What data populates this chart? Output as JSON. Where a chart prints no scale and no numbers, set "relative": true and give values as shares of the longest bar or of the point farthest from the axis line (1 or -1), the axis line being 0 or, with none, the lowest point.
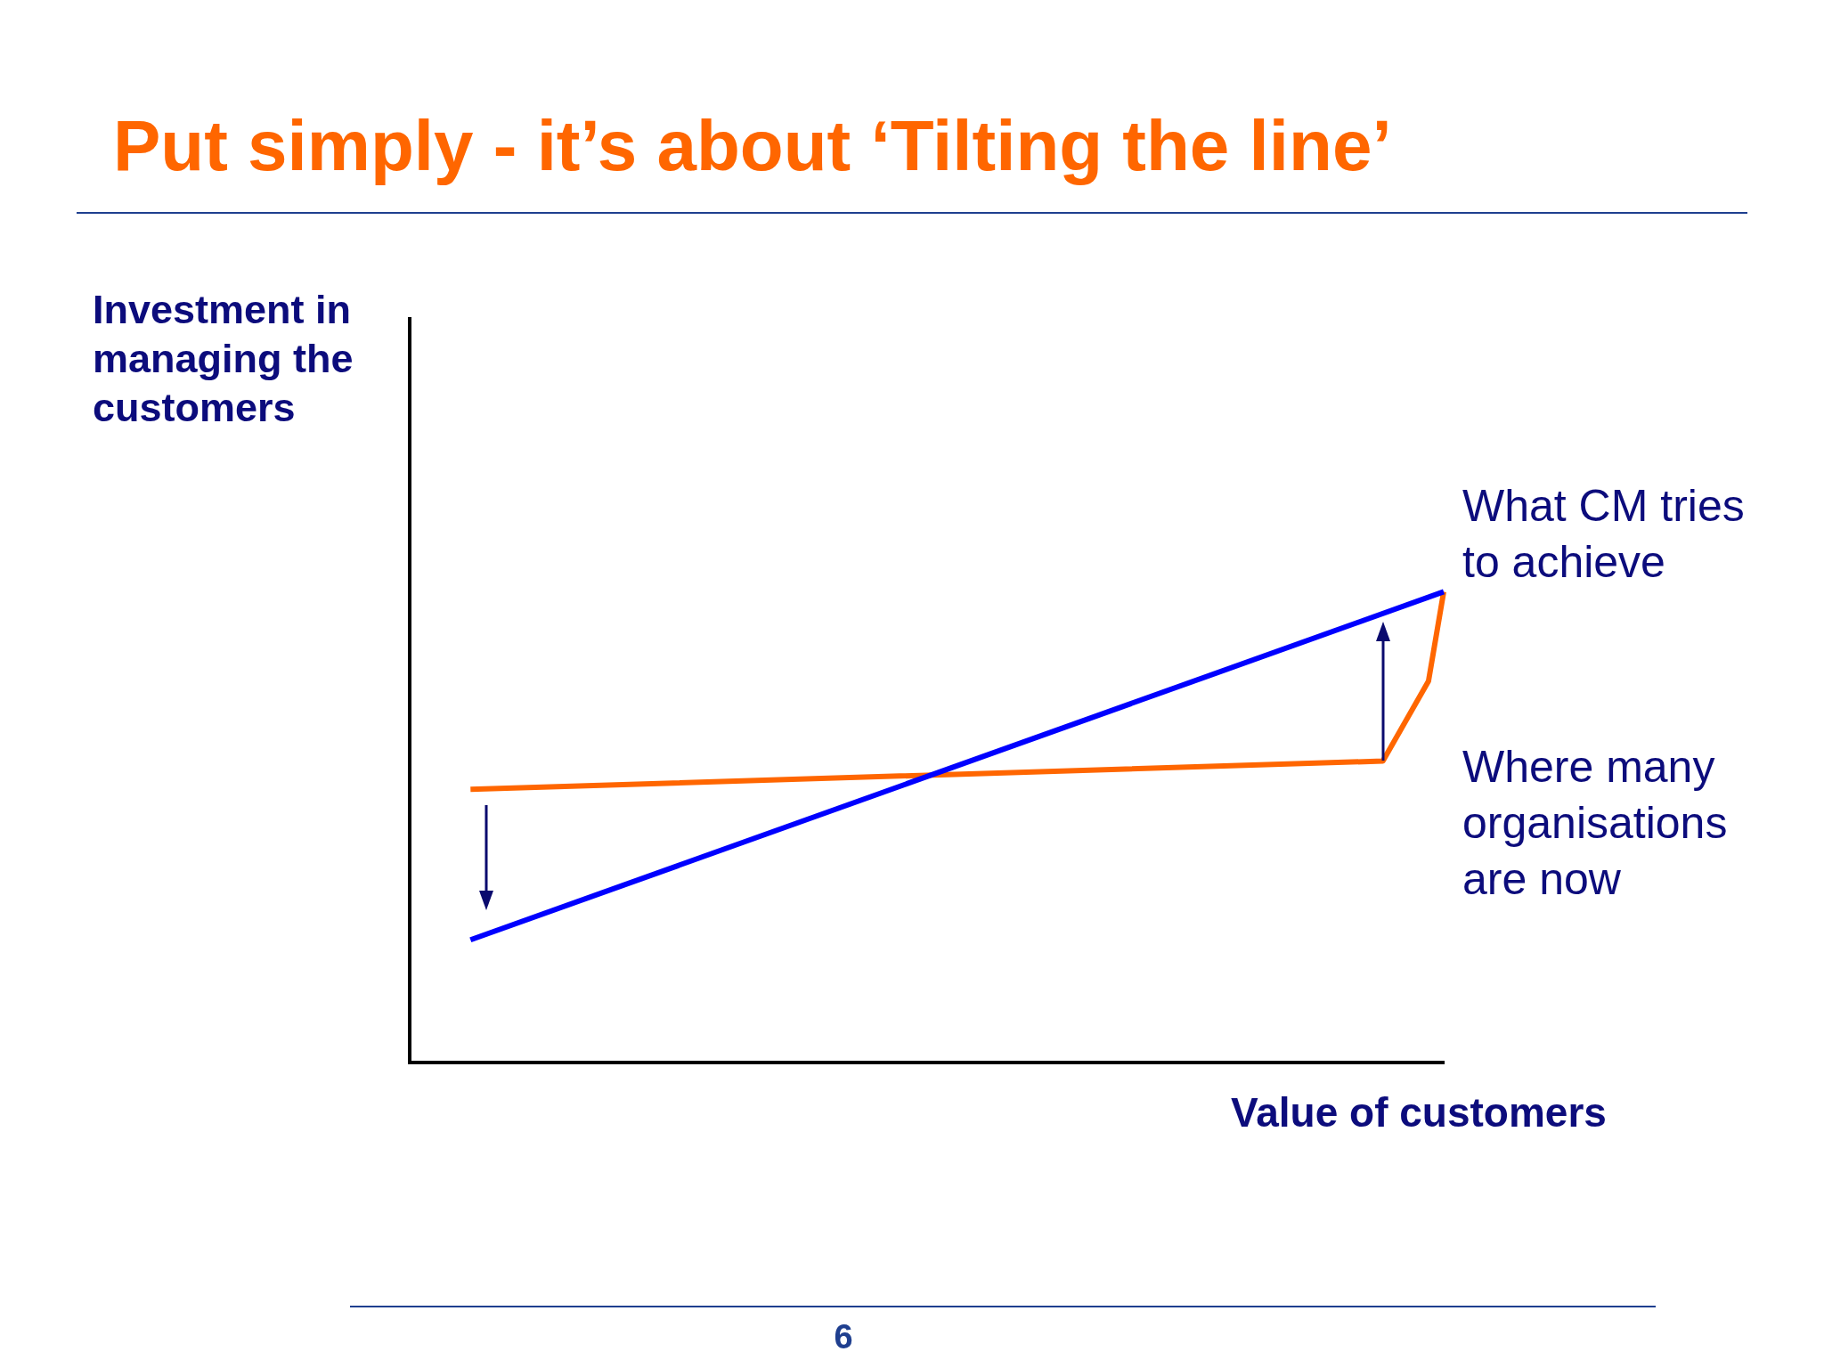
{
  "chart_data": {
    "type": "line",
    "title": "Put simply - it’s about ‘Tilting the line’",
    "xlabel": "Value of customers",
    "ylabel": "Investment in managing the customers",
    "relative": true,
    "categories": [
      null,
      null,
      null,
      null,
      null,
      null,
      null,
      null,
      null,
      null,
      null,
      null,
      null,
      null,
      null,
      null,
      null,
      null,
      null,
      null,
      null,
      null,
      null,
      null,
      null,
      null,
      null,
      null,
      null,
      null,
      null,
      null,
      null,
      null,
      null,
      null,
      null,
      null,
      null,
      null,
      null,
      null,
      null,
      null,
      null,
      null,
      null,
      null,
      null,
      null,
      null,
      null,
      null,
      null,
      null,
      null,
      null,
      null,
      null,
      null,
      null,
      null,
      null,
      null,
      null,
      null,
      null,
      null,
      null
    ],
    "series": [
      {
        "name": "What CM tries to achieve",
        "color": "#0000ff",
        "values": [
          null,
          null,
          null,
          null,
          0.26,
          null,
          null,
          null,
          null,
          null,
          null,
          null,
          null,
          null,
          null,
          null,
          null,
          null,
          null,
          null,
          null,
          null,
          null,
          null,
          null,
          null,
          null,
          null,
          null,
          null,
          null,
          null,
          null,
          null,
          null,
          null,
          null,
          null,
          null,
          null,
          null,
          null,
          null,
          null,
          null,
          null,
          null,
          null,
          null,
          null,
          null,
          null,
          null,
          null,
          null,
          null,
          null,
          null,
          null,
          null,
          null,
          null,
          null,
          null,
          null,
          null,
          null,
          null,
          1
        ]
      },
      {
        "name": "Where many organisations are now",
        "color": "#ff6600",
        "values": [
          null,
          null,
          null,
          null,
          0.58,
          null,
          null,
          null,
          null,
          null,
          null,
          null,
          null,
          null,
          null,
          null,
          null,
          null,
          null,
          null,
          null,
          null,
          null,
          null,
          null,
          null,
          null,
          null,
          null,
          null,
          null,
          null,
          null,
          null,
          null,
          null,
          null,
          null,
          null,
          null,
          null,
          null,
          null,
          null,
          null,
          null,
          null,
          null,
          null,
          null,
          null,
          null,
          null,
          null,
          null,
          null,
          null,
          null,
          null,
          null,
          null,
          null,
          null,
          null,
          0.64,
          null,
          null,
          0.81,
          1
        ]
      }
    ],
    "legend": false,
    "marker": "none",
    "line_style": "solid",
    "annotations": [
      "6"
    ]
  }
}
